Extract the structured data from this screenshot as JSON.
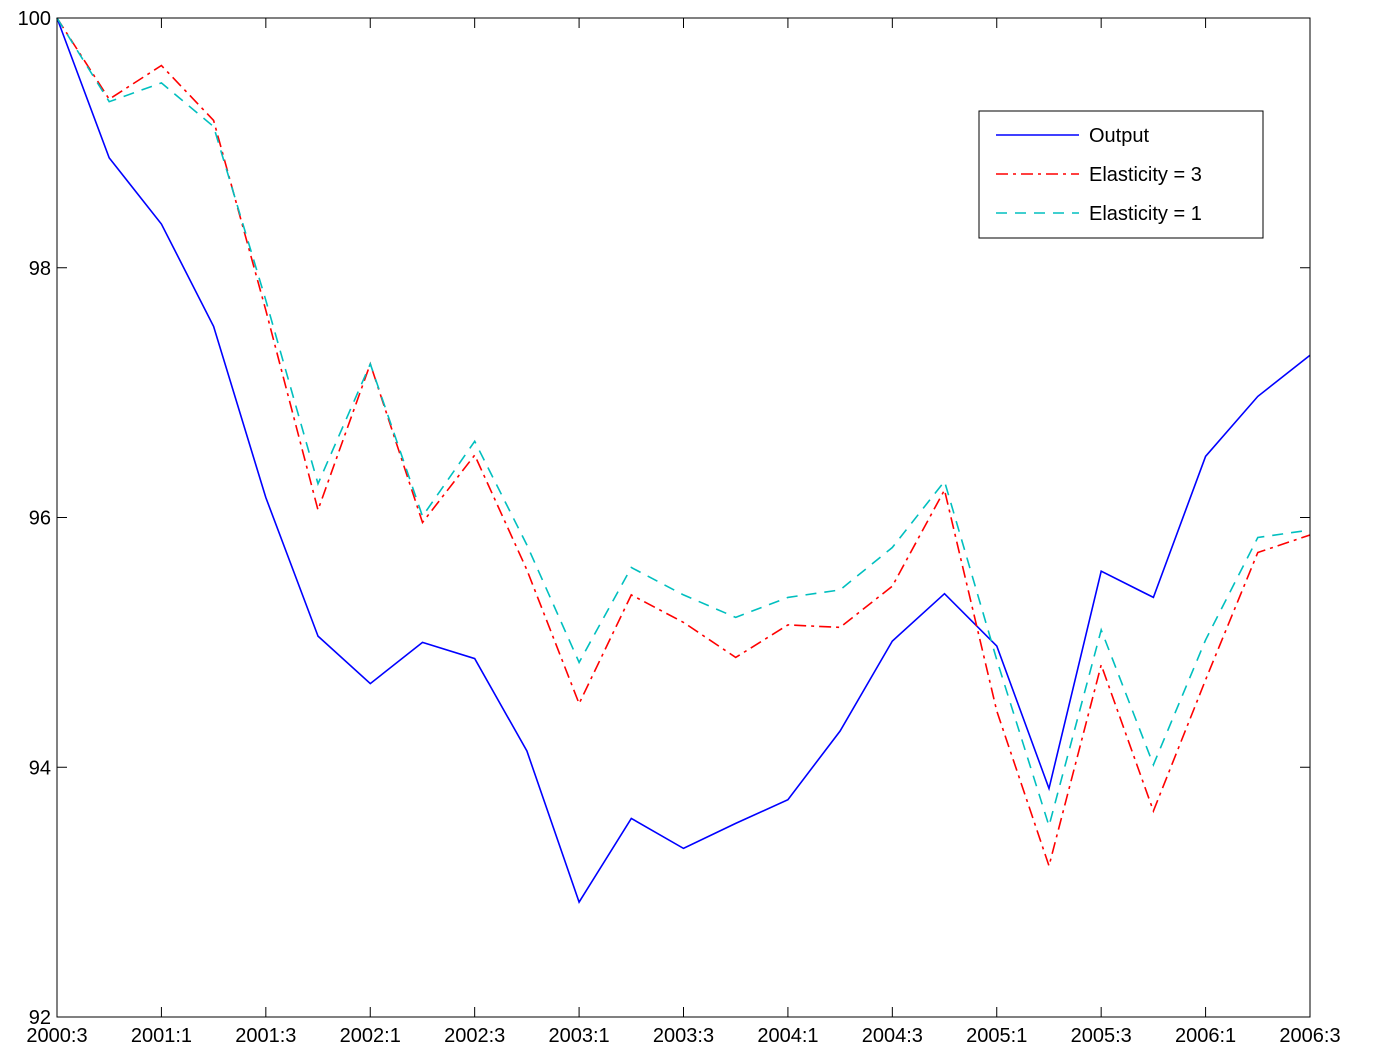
{
  "chart_data": {
    "type": "line",
    "categories": [
      "2000:3",
      null,
      "2001:1",
      null,
      "2001:3",
      null,
      "2002:1",
      null,
      "2002:3",
      null,
      "2003:1",
      null,
      "2003:3",
      null,
      "2004:1",
      null,
      "2004:3",
      null,
      "2005:1",
      null,
      "2005:3",
      null,
      "2006:1",
      null,
      "2006:3"
    ],
    "series": [
      {
        "name": "Output",
        "color": "#0000ff",
        "dash": "solid",
        "values": [
          100,
          98.88,
          98.35,
          97.53,
          96.16,
          95.05,
          94.67,
          95.0,
          94.87,
          94.13,
          92.92,
          93.59,
          93.35,
          93.55,
          93.74,
          94.29,
          95.01,
          95.39,
          94.97,
          93.83,
          95.57,
          95.36,
          96.49,
          96.97,
          97.3
        ]
      },
      {
        "name": "Elasticity = 3",
        "color": "#ff0000",
        "dash": "dashdot",
        "values": [
          100,
          99.35,
          99.62,
          99.18,
          97.66,
          96.06,
          97.23,
          95.96,
          96.5,
          95.58,
          94.51,
          95.38,
          95.16,
          94.88,
          95.14,
          95.12,
          95.45,
          96.22,
          94.45,
          93.21,
          94.82,
          93.65,
          94.7,
          95.72,
          95.86
        ]
      },
      {
        "name": "Elasticity = 1",
        "color": "#00bfbf",
        "dash": "dashed",
        "values": [
          100,
          99.33,
          99.48,
          99.13,
          97.74,
          96.27,
          97.23,
          96.01,
          96.61,
          95.78,
          94.84,
          95.6,
          95.38,
          95.2,
          95.36,
          95.42,
          95.76,
          96.29,
          94.86,
          93.53,
          95.1,
          94.02,
          95.02,
          95.84,
          95.9
        ]
      }
    ],
    "ylim": [
      92,
      100
    ],
    "yticks": [
      92,
      94,
      96,
      98,
      100
    ],
    "grid": false,
    "legend": "upper right"
  }
}
